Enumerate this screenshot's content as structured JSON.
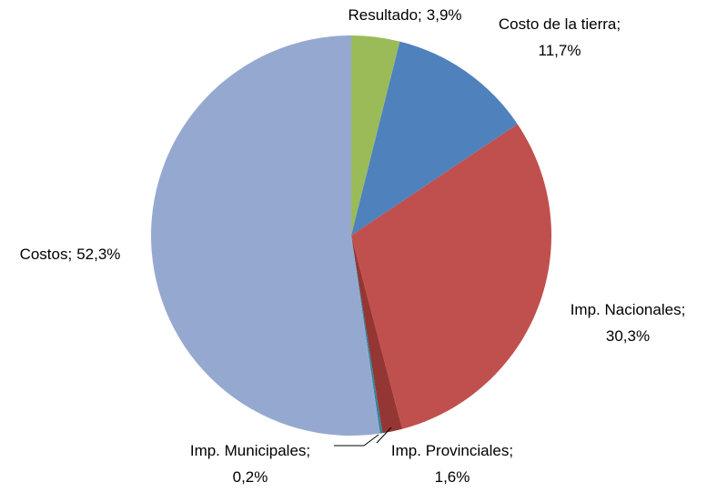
{
  "chart_data": {
    "type": "pie",
    "categories": [
      "Resultado",
      "Costo de la tierra",
      "Imp. Nacionales",
      "Imp. Provinciales",
      "Imp. Municipales",
      "Costos"
    ],
    "values": [
      3.9,
      11.7,
      30.3,
      1.6,
      0.2,
      52.3
    ],
    "value_labels": [
      "3,9%",
      "11,7%",
      "30,3%",
      "1,6%",
      "0,2%",
      "52,3%"
    ],
    "label_separator": ";",
    "colors": [
      "#9bbb59",
      "#4f81bd",
      "#c0504d",
      "#943634",
      "#31859c",
      "#95a9d0"
    ]
  }
}
